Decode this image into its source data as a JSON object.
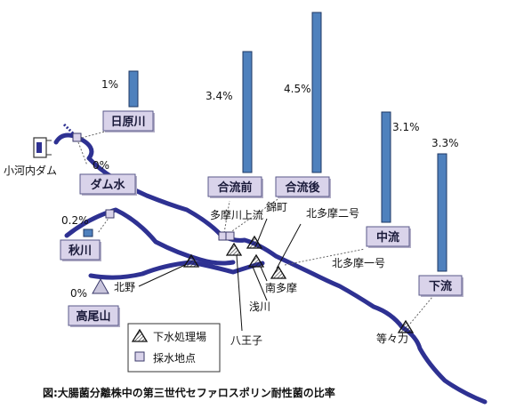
{
  "colors": {
    "river": "#2e3192",
    "bar_fill": "#4f81bd",
    "bar_edge": "#1f3864",
    "label_box": "#d9d3ea",
    "label_edge": "#5a5a8a",
    "text": "#111111"
  },
  "bar_scale_max_percent": 4.5,
  "sites": [
    {
      "id": "hihara",
      "name": "日原川",
      "percent": 1,
      "percent_label": "1%"
    },
    {
      "id": "dam",
      "name": "ダム水",
      "percent": 0,
      "percent_label": "0%"
    },
    {
      "id": "akigawa",
      "name": "秋川",
      "percent": 0.2,
      "percent_label": "0.2%"
    },
    {
      "id": "takao",
      "name": "高尾山",
      "percent": 0,
      "percent_label": "0%"
    },
    {
      "id": "goryumae",
      "name": "合流前",
      "percent": 3.4,
      "percent_label": "3.4%"
    },
    {
      "id": "goryugo",
      "name": "合流後",
      "percent": 4.5,
      "percent_label": "4.5%"
    },
    {
      "id": "churyu",
      "name": "中流",
      "percent": 3.1,
      "percent_label": "3.1%"
    },
    {
      "id": "karyu",
      "name": "下流",
      "percent": 3.3,
      "percent_label": "3.3%"
    }
  ],
  "place_labels": {
    "ogouchi_dam": "小河内ダム",
    "tamagawa_upper": "多摩川上流",
    "nishikicho": "錦町",
    "kitatama_2": "北多摩二号",
    "kitatama_1": "北多摩一号",
    "minamitama": "南多摩",
    "asakawa": "浅川",
    "hachioji": "八王子",
    "kitano": "北野",
    "todoroki": "等々力"
  },
  "legend": {
    "sewage_plant": "下水処理場",
    "sampling_point": "採水地点"
  },
  "caption": "図:大腸菌分離株中の第三世代セファロスポリン耐性菌の比率",
  "icons": {
    "sewage_plant": "triangle-icon",
    "sampling_point": "square-icon",
    "dam": "dam-icon"
  }
}
